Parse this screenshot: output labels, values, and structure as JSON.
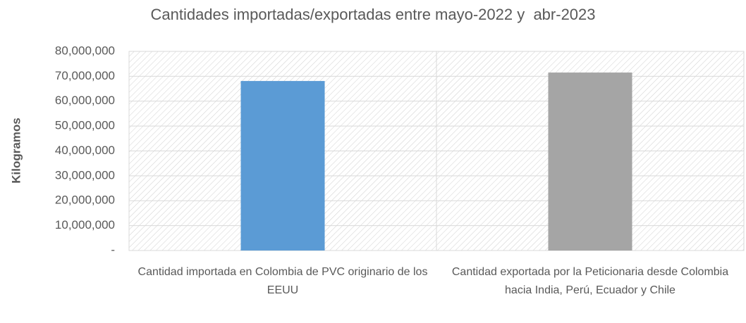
{
  "chart_data": {
    "type": "bar",
    "title": "Cantidades importadas/exportadas entre mayo-2022 y  abr-2023",
    "y_label": "Kilogramos",
    "categories": [
      "Cantidad importada en Colombia de PVC originario de los EEUU",
      "Cantidad exportada por la Peticionaria desde Colombia hacia India, Perú, Ecuador y Chile"
    ],
    "values": [
      68100000,
      71500000
    ],
    "colors": [
      "#5b9bd5",
      "#a5a5a5"
    ],
    "ylim": [
      0,
      80000000
    ],
    "yticks": [
      {
        "value": 0,
        "label": "-"
      },
      {
        "value": 10000000,
        "label": "10,000,000"
      },
      {
        "value": 20000000,
        "label": "20,000,000"
      },
      {
        "value": 30000000,
        "label": "30,000,000"
      },
      {
        "value": 40000000,
        "label": "40,000,000"
      },
      {
        "value": 50000000,
        "label": "50,000,000"
      },
      {
        "value": 60000000,
        "label": "60,000,000"
      },
      {
        "value": 70000000,
        "label": "70,000,000"
      },
      {
        "value": 80000000,
        "label": "80,000,000"
      }
    ],
    "grid": true
  }
}
